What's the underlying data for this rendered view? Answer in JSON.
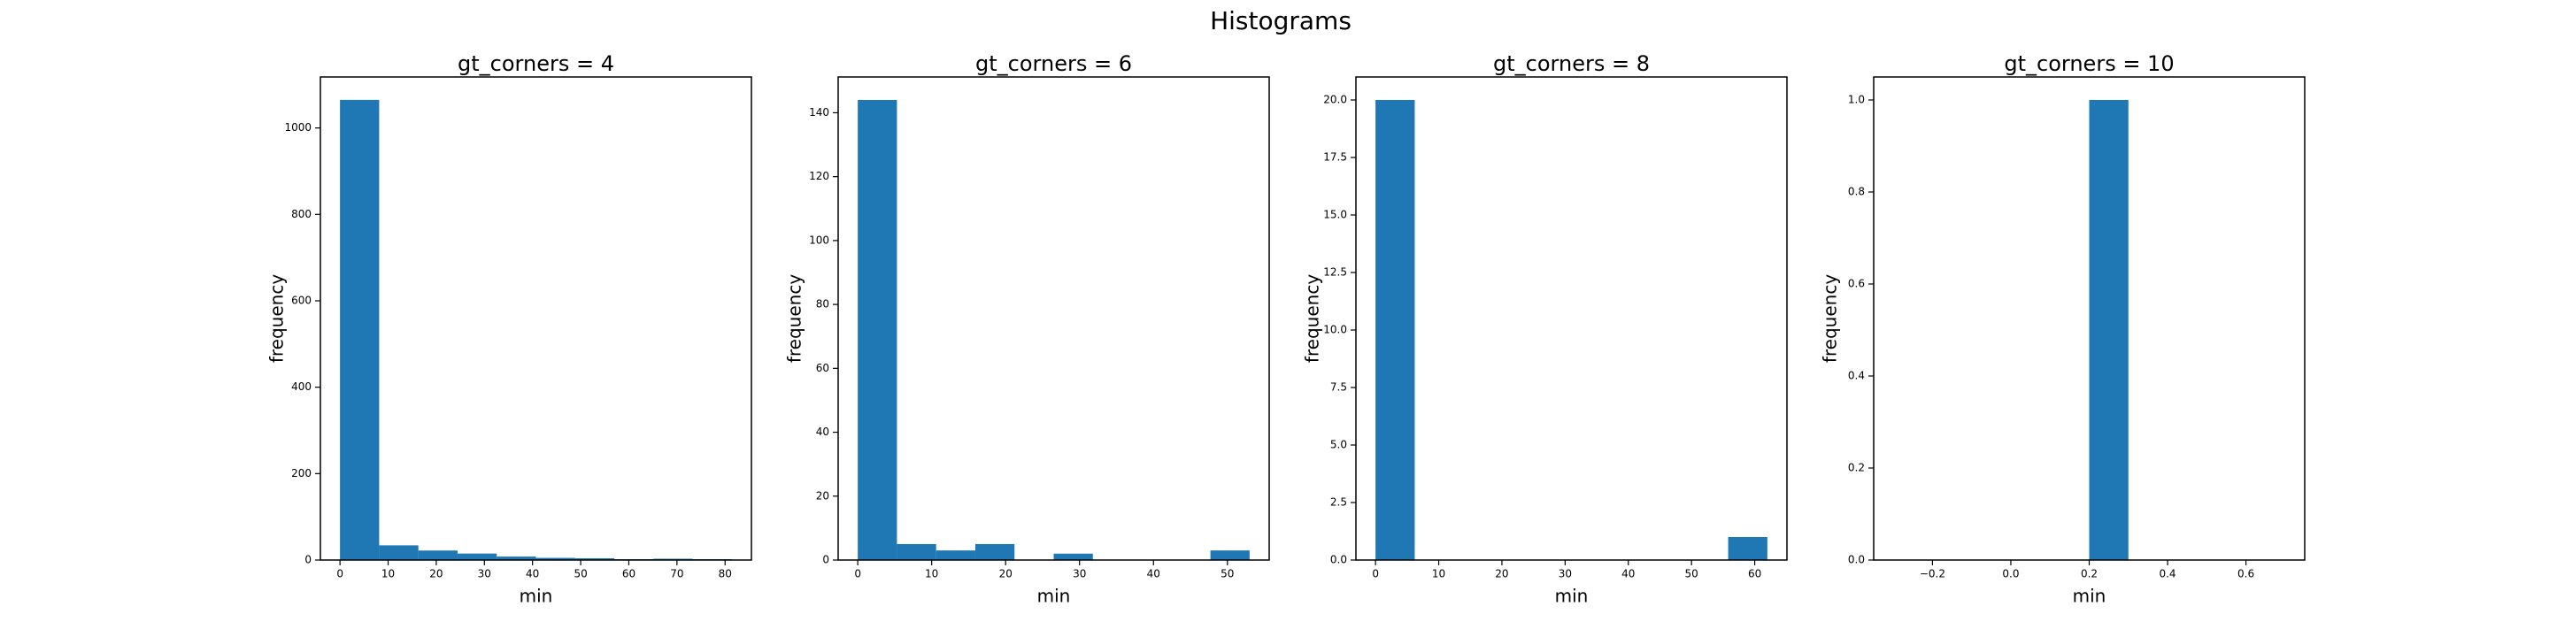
{
  "title": "Histograms",
  "chart_data": [
    {
      "type": "histogram",
      "title": "gt_corners = 4",
      "xlabel": "min",
      "ylabel": "frequency",
      "color": "#1f77b4",
      "bins": [
        0,
        8.14,
        16.28,
        24.42,
        32.56,
        40.7,
        48.84,
        56.98,
        65.12,
        73.26,
        81.4
      ],
      "values": [
        1065,
        34,
        22,
        15,
        8,
        5,
        4,
        2,
        3,
        2
      ],
      "xlim": [
        -4.07,
        85.47
      ],
      "ylim": [
        0,
        1118
      ],
      "xticks": [
        0,
        10,
        20,
        30,
        40,
        50,
        60,
        70,
        80
      ],
      "yticks": [
        0,
        200,
        400,
        600,
        800,
        1000
      ]
    },
    {
      "type": "histogram",
      "title": "gt_corners = 6",
      "xlabel": "min",
      "ylabel": "frequency",
      "color": "#1f77b4",
      "bins": [
        0,
        5.3,
        10.6,
        15.9,
        21.2,
        26.5,
        31.8,
        37.1,
        42.4,
        47.7,
        53
      ],
      "values": [
        144,
        5,
        3,
        5,
        0,
        2,
        0,
        0,
        0,
        3
      ],
      "xlim": [
        -2.65,
        55.65
      ],
      "ylim": [
        0,
        151.2
      ],
      "xticks": [
        0,
        10,
        20,
        30,
        40,
        50
      ],
      "yticks": [
        0,
        20,
        40,
        60,
        80,
        100,
        120,
        140
      ]
    },
    {
      "type": "histogram",
      "title": "gt_corners = 8",
      "xlabel": "min",
      "ylabel": "frequency",
      "color": "#1f77b4",
      "bins": [
        0,
        6.2,
        12.4,
        18.6,
        24.8,
        31,
        37.2,
        43.4,
        49.6,
        55.8,
        62
      ],
      "values": [
        20,
        0,
        0,
        0,
        0,
        0,
        0,
        0,
        0,
        1
      ],
      "xlim": [
        -3.1,
        65.1
      ],
      "ylim": [
        0,
        21
      ],
      "xticks": [
        0,
        10,
        20,
        30,
        40,
        50,
        60
      ],
      "yticks": [
        {
          "value": 0,
          "label": "0.0"
        },
        2.5,
        {
          "value": 5,
          "label": "5.0"
        },
        7.5,
        {
          "value": 10,
          "label": "10.0"
        },
        12.5,
        {
          "value": 15,
          "label": "15.0"
        },
        17.5,
        {
          "value": 20,
          "label": "20.0"
        }
      ]
    },
    {
      "type": "histogram",
      "title": "gt_corners = 10",
      "xlabel": "min",
      "ylabel": "frequency",
      "color": "#1f77b4",
      "bins": [
        -0.3,
        -0.2,
        -0.1,
        0,
        0.1,
        0.2,
        0.3,
        0.4,
        0.5,
        0.6,
        0.7
      ],
      "values": [
        0,
        0,
        0,
        0,
        0,
        1,
        0,
        0,
        0,
        0
      ],
      "xlim": [
        -0.35,
        0.75
      ],
      "ylim": [
        0,
        1.05
      ],
      "xticks": [
        {
          "value": -0.2,
          "label": "−0.2"
        },
        {
          "value": 0,
          "label": "0.0"
        },
        0.2,
        0.4,
        0.6
      ],
      "yticks": [
        {
          "value": 0,
          "label": "0.0"
        },
        0.2,
        0.4,
        0.6,
        0.8,
        {
          "value": 1,
          "label": "1.0"
        }
      ]
    }
  ]
}
